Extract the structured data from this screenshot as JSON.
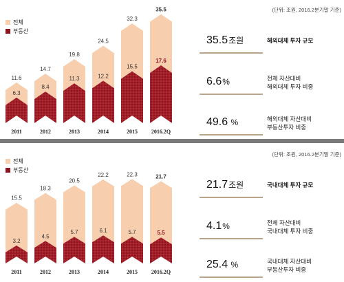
{
  "panels": [
    {
      "note": "(단위: 조원, 2016.2분기말 기준)",
      "legend": {
        "total": "전체",
        "real_estate": "부동산"
      },
      "chart_data": {
        "type": "bar",
        "categories": [
          "2011",
          "2012",
          "2013",
          "2014",
          "2015",
          "2016.2Q"
        ],
        "series": [
          {
            "name": "전체",
            "values": [
              11.6,
              14.7,
              19.8,
              24.5,
              32.3,
              35.5
            ]
          },
          {
            "name": "부동산",
            "values": [
              6.3,
              8.4,
              11.3,
              12.2,
              15.5,
              17.6
            ]
          }
        ],
        "ylim": [
          0,
          36
        ]
      },
      "metrics": [
        {
          "value": "35.5",
          "unit": "조원",
          "desc": "해외대체 투자 규모",
          "bold": true
        },
        {
          "value": "6.6",
          "unit": "%",
          "desc": "전체 자산대비\n해외대체 투자 비중",
          "bold": false
        },
        {
          "value": "49.6",
          "unit": " %",
          "desc": "해외대체 자산대비\n부동산투자 비중",
          "bold": false
        }
      ]
    },
    {
      "note": "(단위: 조원, 2016.2분기말 기준)",
      "legend": {
        "total": "전체",
        "real_estate": "부동산"
      },
      "chart_data": {
        "type": "bar",
        "categories": [
          "2011",
          "2012",
          "2013",
          "2014",
          "2015",
          "2016.2Q"
        ],
        "series": [
          {
            "name": "전체",
            "values": [
              15.5,
              18.3,
              20.5,
              22.2,
              22.3,
              21.7
            ]
          },
          {
            "name": "부동산",
            "values": [
              3.2,
              4.5,
              5.7,
              6.1,
              5.7,
              5.5
            ]
          }
        ],
        "ylim": [
          0,
          24
        ]
      },
      "metrics": [
        {
          "value": "21.7",
          "unit": "조원",
          "desc": "국내대체 투자 규모",
          "bold": true
        },
        {
          "value": "4.1",
          "unit": "%",
          "desc": "전체 자산대비\n국내대체 투자 비중",
          "bold": false
        },
        {
          "value": "25.4",
          "unit": " %",
          "desc": "국내대체 자산대비\n부동산투자 비중",
          "bold": false
        }
      ]
    }
  ],
  "colors": {
    "total_fill": "#f8cfae",
    "real_estate_fill": "#8e1520",
    "highlight_label": "#8e1520",
    "rule": "#b9a48a"
  }
}
